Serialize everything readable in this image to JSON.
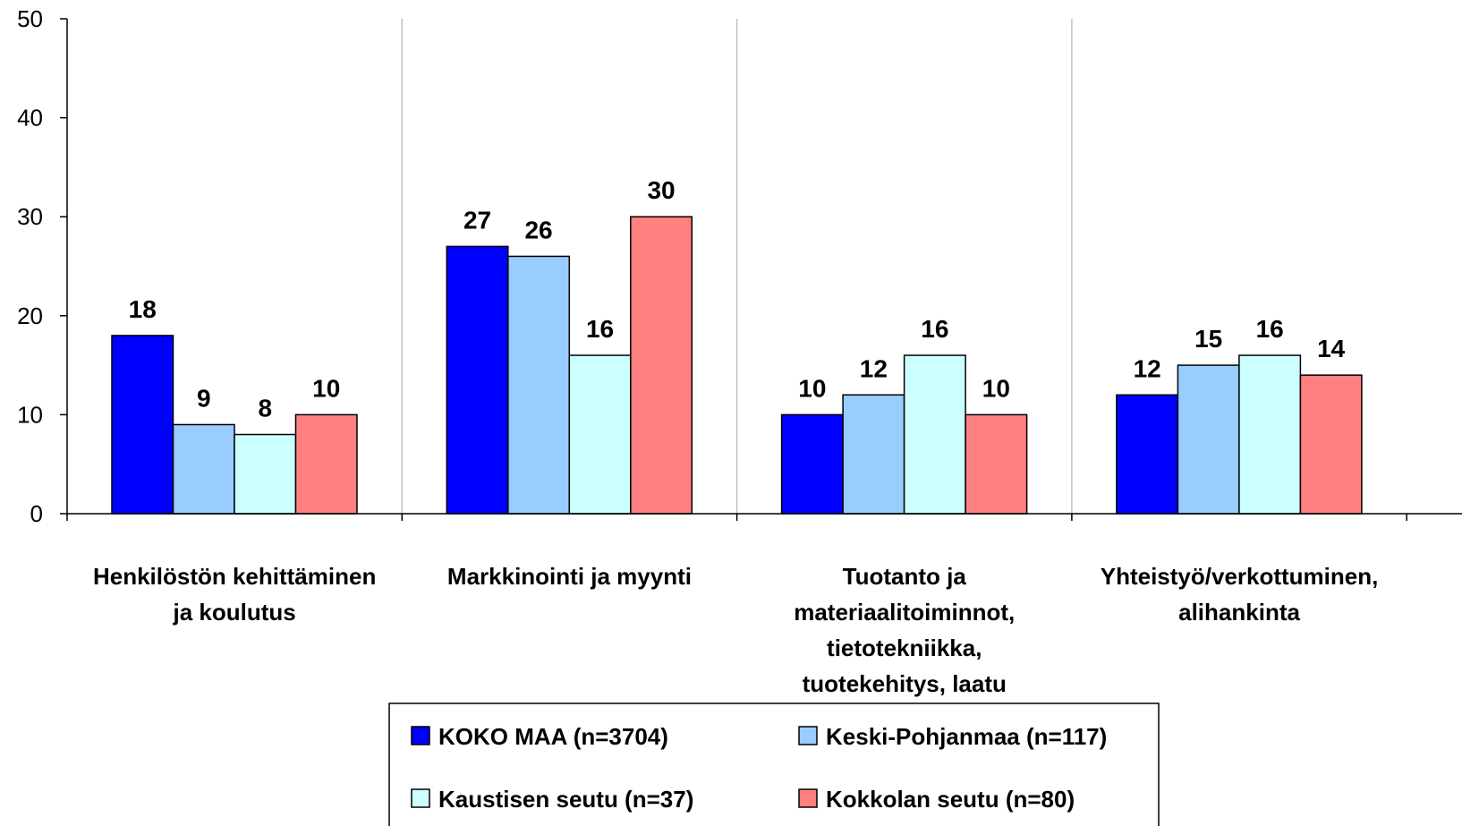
{
  "chart_data": {
    "type": "bar",
    "categories": [
      [
        "Henkilöstön kehittäminen",
        "ja koulutus"
      ],
      [
        "Markkinointi ja myynti"
      ],
      [
        "Tuotanto ja",
        "materiaalitoiminnot,",
        "tietotekniikka,",
        "tuotekehitys, laatu"
      ],
      [
        "Yhteistyö/verkottuminen,",
        "alihankinta"
      ]
    ],
    "series": [
      {
        "name": "KOKO MAA (n=3704)",
        "color": "#0000FF",
        "values": [
          18,
          27,
          10,
          12
        ]
      },
      {
        "name": "Keski-Pohjanmaa (n=117)",
        "color": "#99CCFF",
        "values": [
          9,
          26,
          12,
          15
        ]
      },
      {
        "name": "Kaustisen seutu (n=37)",
        "color": "#CCFFFF",
        "values": [
          8,
          16,
          16,
          16
        ]
      },
      {
        "name": "Kokkolan seutu (n=80)",
        "color": "#FF8080",
        "values": [
          10,
          30,
          10,
          14
        ]
      }
    ],
    "ylim": [
      0,
      50
    ],
    "yticks": [
      0,
      10,
      20,
      30,
      40,
      50
    ],
    "grid": "vertical",
    "legend": "bottom",
    "title": "",
    "xlabel": "",
    "ylabel": ""
  }
}
